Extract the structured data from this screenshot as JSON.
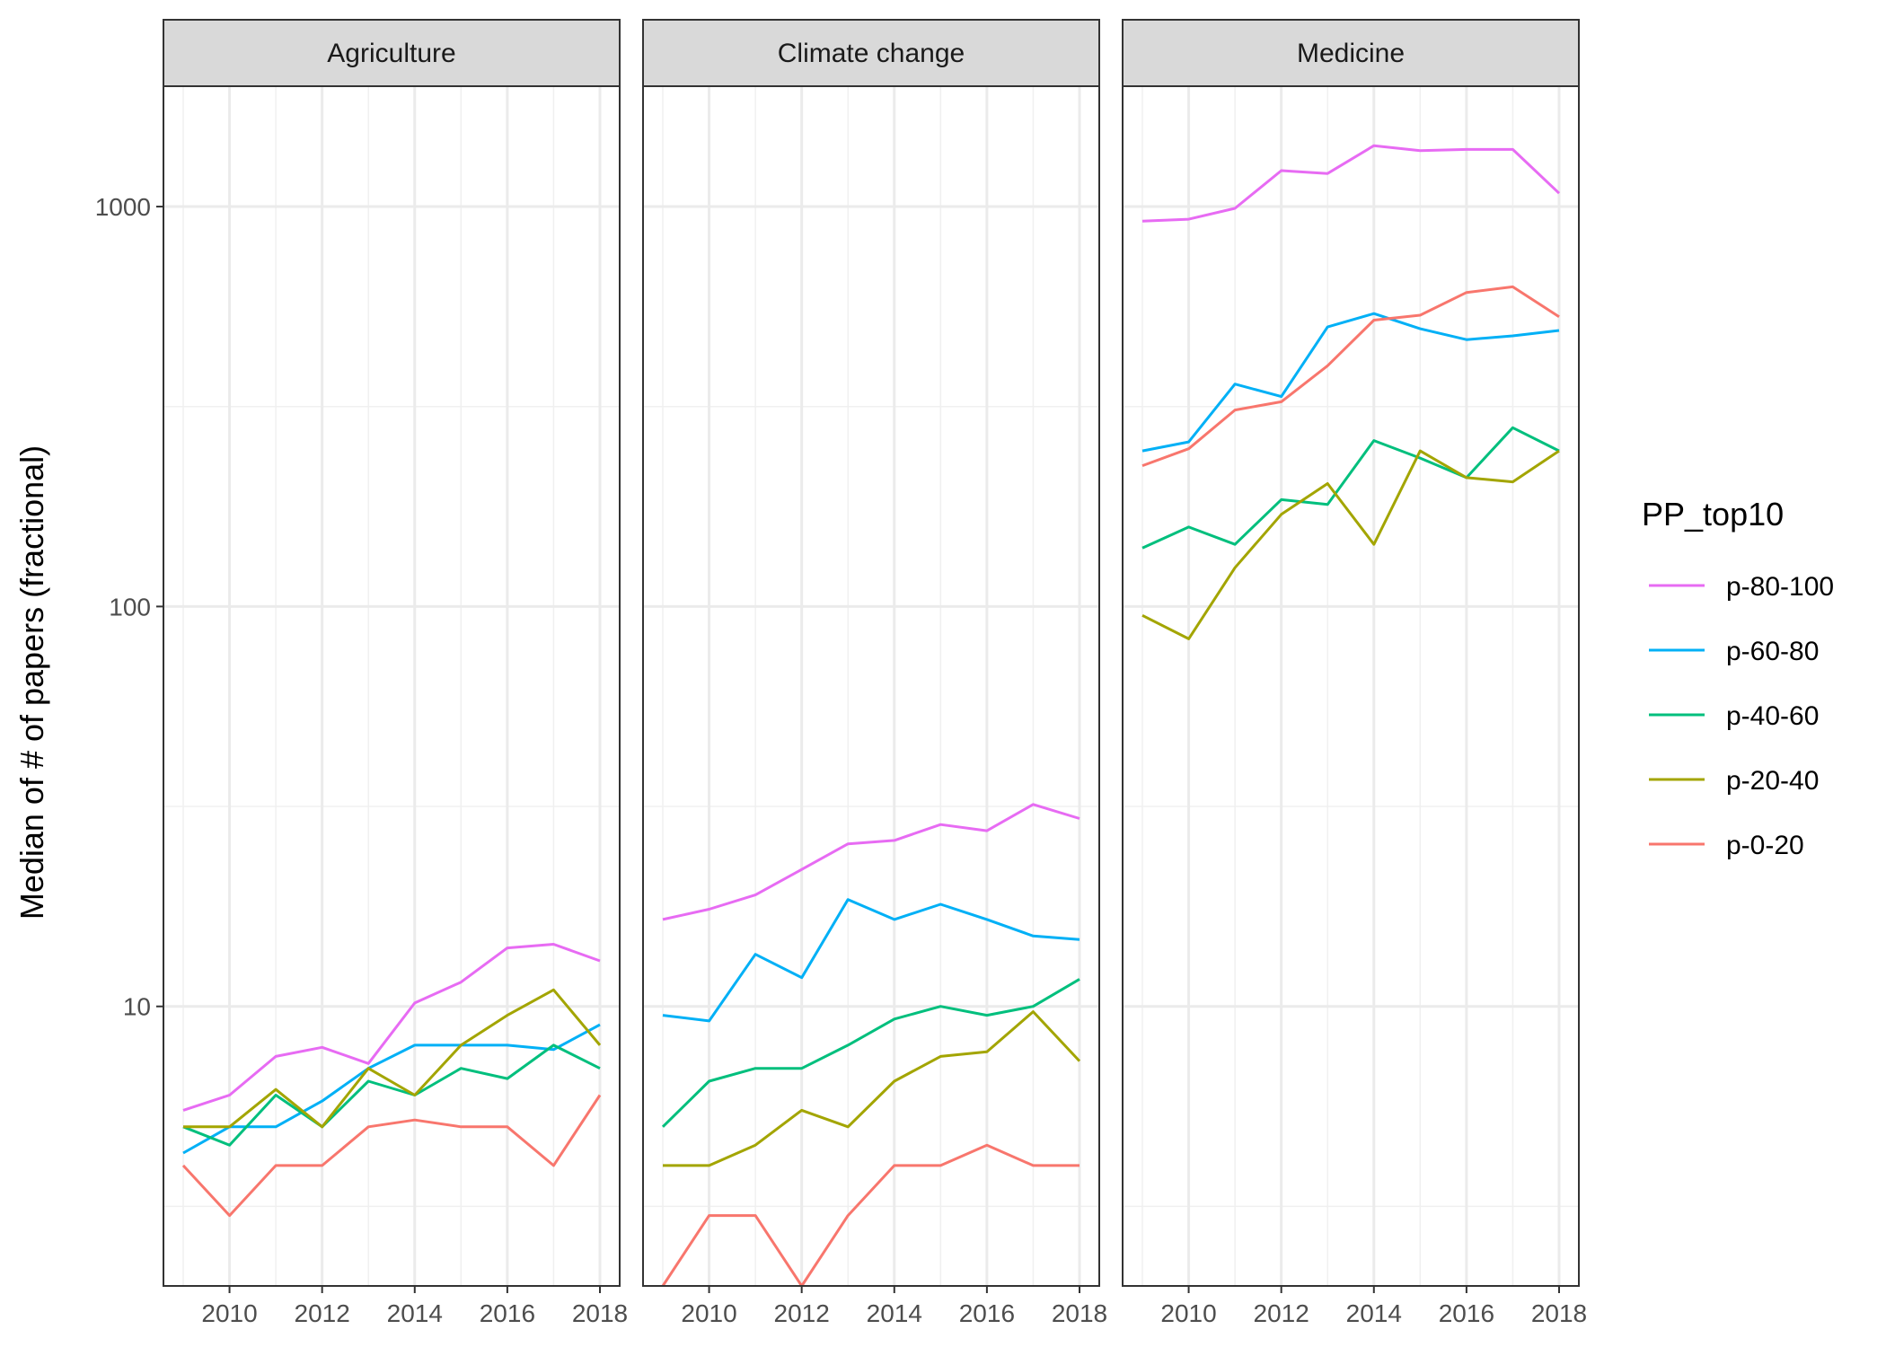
{
  "chart_data": {
    "type": "line",
    "facet_by": "field",
    "y_scale": "log10",
    "ylabel": "Median of # of papers (fractional)",
    "xlabel": "",
    "x_ticks": [
      2010,
      2012,
      2014,
      2016,
      2018
    ],
    "y_ticks": [
      10,
      100,
      1000
    ],
    "ylim": [
      2,
      2000
    ],
    "xlim": [
      2009,
      2018
    ],
    "grid": true,
    "legend": {
      "title": "PP_top10",
      "position": "right",
      "entries": [
        {
          "name": "p-80-100",
          "color": "#E76BF3"
        },
        {
          "name": "p-60-80",
          "color": "#00B0F6"
        },
        {
          "name": "p-40-60",
          "color": "#00BF7D"
        },
        {
          "name": "p-20-40",
          "color": "#A3A500"
        },
        {
          "name": "p-0-20",
          "color": "#F8766D"
        }
      ]
    },
    "x": [
      2009,
      2010,
      2011,
      2012,
      2013,
      2014,
      2015,
      2016,
      2017,
      2018
    ],
    "panels": [
      {
        "title": "Agriculture",
        "series": [
          {
            "name": "p-80-100",
            "values": [
              5.5,
              6,
              7.5,
              7.9,
              7.2,
              10.2,
              11.5,
              14,
              14.3,
              13
            ]
          },
          {
            "name": "p-60-80",
            "values": [
              4.3,
              5,
              5,
              5.8,
              7,
              8,
              8,
              8,
              7.8,
              9
            ]
          },
          {
            "name": "p-40-60",
            "values": [
              5,
              4.5,
              6,
              5,
              6.5,
              6,
              7,
              6.6,
              8,
              7
            ]
          },
          {
            "name": "p-20-40",
            "values": [
              5,
              5,
              6.2,
              5,
              7,
              6,
              8,
              9.5,
              11,
              8
            ]
          },
          {
            "name": "p-0-20",
            "values": [
              4,
              3,
              4,
              4,
              5,
              5.2,
              5,
              5,
              4,
              6
            ]
          }
        ]
      },
      {
        "title": "Climate change",
        "series": [
          {
            "name": "p-80-100",
            "values": [
              16.5,
              17.5,
              19,
              22,
              25.5,
              26,
              28.5,
              27.5,
              32,
              29.5
            ]
          },
          {
            "name": "p-60-80",
            "values": [
              9.5,
              9.2,
              13.5,
              11.8,
              18.5,
              16.5,
              18,
              16.5,
              15,
              14.7
            ]
          },
          {
            "name": "p-40-60",
            "values": [
              5,
              6.5,
              7,
              7,
              8,
              9.3,
              10,
              9.5,
              10,
              11.7
            ]
          },
          {
            "name": "p-20-40",
            "values": [
              4,
              4,
              4.5,
              5.5,
              5,
              6.5,
              7.5,
              7.7,
              9.7,
              7.3
            ]
          },
          {
            "name": "p-0-20",
            "values": [
              2,
              3,
              3,
              2,
              3,
              4,
              4,
              4.5,
              4,
              4
            ]
          }
        ]
      },
      {
        "title": "Medicine",
        "series": [
          {
            "name": "p-80-100",
            "values": [
              920,
              930,
              990,
              1230,
              1210,
              1420,
              1380,
              1390,
              1390,
              1080
            ]
          },
          {
            "name": "p-60-80",
            "values": [
              245,
              258,
              360,
              335,
              500,
              540,
              495,
              465,
              475,
              490
            ]
          },
          {
            "name": "p-40-60",
            "values": [
              140,
              158,
              143,
              185,
              180,
              260,
              235,
              210,
              280,
              245
            ]
          },
          {
            "name": "p-20-40",
            "values": [
              95,
              83,
              125,
              170,
              203,
              143,
              245,
              210,
              205,
              245
            ]
          },
          {
            "name": "p-0-20",
            "values": [
              225,
              248,
              310,
              325,
              400,
              520,
              535,
              610,
              630,
              530
            ]
          }
        ]
      }
    ]
  }
}
